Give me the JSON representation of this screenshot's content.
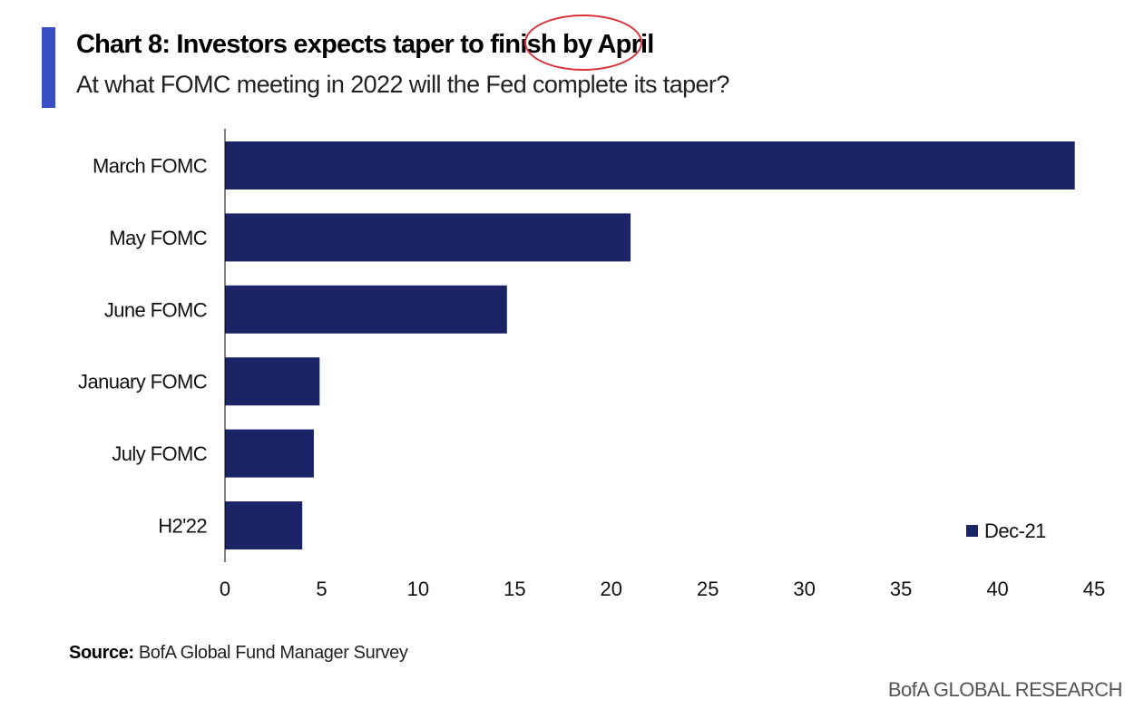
{
  "header": {
    "title": "Chart 8: Investors expects taper to finish by April",
    "subtitle": "At what FOMC meeting in 2022 will the Fed complete its taper?"
  },
  "annotation": {
    "circled_text": "by April",
    "color": "#d9303a"
  },
  "chart_data": {
    "type": "bar",
    "orientation": "horizontal",
    "categories": [
      "March FOMC",
      "May FOMC",
      "June FOMC",
      "January FOMC",
      "July FOMC",
      "H2'22"
    ],
    "series": [
      {
        "name": "Dec-21",
        "values": [
          44,
          21,
          14.6,
          4.9,
          4.6,
          4.0
        ],
        "color": "#1a2466"
      }
    ],
    "xlim": [
      0,
      45
    ],
    "xticks": [
      0,
      5,
      10,
      15,
      20,
      25,
      30,
      35,
      40,
      45
    ],
    "grid": false,
    "legend_position": "bottom-right"
  },
  "footer": {
    "source_label": "Source:",
    "source_text": "BofA Global Fund Manager Survey",
    "brand": "BofA GLOBAL RESEARCH"
  },
  "colors": {
    "accent": "#3b4fc4",
    "bar": "#1a2466"
  }
}
